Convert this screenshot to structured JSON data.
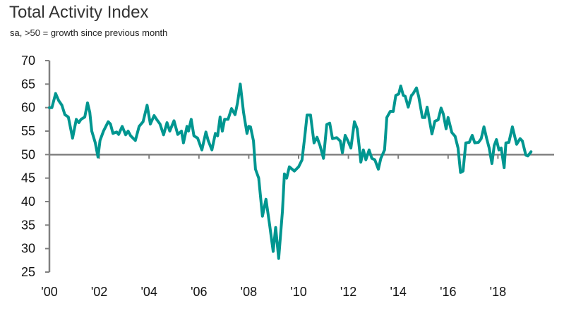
{
  "chart_data": {
    "type": "line",
    "title": "Total Activity Index",
    "subtitle": "sa, >50 = growth since previous month",
    "xlabel": "",
    "ylabel": "",
    "ylim": [
      25,
      70
    ],
    "xlim": [
      2000,
      2019.5
    ],
    "yticks": [
      25,
      30,
      35,
      40,
      45,
      50,
      55,
      60,
      65,
      70
    ],
    "xticks": [
      {
        "year": 2000,
        "label": "'00"
      },
      {
        "year": 2002,
        "label": "'02"
      },
      {
        "year": 2004,
        "label": "'04"
      },
      {
        "year": 2006,
        "label": "'06"
      },
      {
        "year": 2008,
        "label": "'08"
      },
      {
        "year": 2010,
        "label": "'10"
      },
      {
        "year": 2012,
        "label": "'12"
      },
      {
        "year": 2014,
        "label": "'14"
      },
      {
        "year": 2016,
        "label": "'16"
      },
      {
        "year": 2018,
        "label": "'18"
      }
    ],
    "reference_line": 50,
    "grid": false,
    "series": [
      {
        "name": "Total Activity Index",
        "color": "#009690",
        "x": [
          2000.0,
          2000.1,
          2000.25,
          2000.37,
          2000.5,
          2000.62,
          2000.76,
          2000.93,
          2001.08,
          2001.18,
          2001.27,
          2001.42,
          2001.53,
          2001.62,
          2001.7,
          2001.84,
          2001.95,
          2002.03,
          2002.17,
          2002.36,
          2002.45,
          2002.55,
          2002.7,
          2002.78,
          2002.92,
          2003.06,
          2003.16,
          2003.26,
          2003.45,
          2003.6,
          2003.76,
          2003.92,
          2004.05,
          2004.2,
          2004.3,
          2004.44,
          2004.58,
          2004.72,
          2004.83,
          2005.0,
          2005.15,
          2005.3,
          2005.38,
          2005.52,
          2005.58,
          2005.69,
          2005.8,
          2005.95,
          2006.12,
          2006.28,
          2006.37,
          2006.52,
          2006.66,
          2006.75,
          2006.85,
          2006.94,
          2007.03,
          2007.17,
          2007.31,
          2007.45,
          2007.55,
          2007.66,
          2007.79,
          2007.93,
          2008.0,
          2008.07,
          2008.19,
          2008.27,
          2008.4,
          2008.55,
          2008.69,
          2008.84,
          2008.98,
          2009.08,
          2009.2,
          2009.35,
          2009.43,
          2009.52,
          2009.63,
          2009.83,
          2010.0,
          2010.14,
          2010.25,
          2010.34,
          2010.48,
          2010.62,
          2010.74,
          2010.86,
          2011.0,
          2011.13,
          2011.25,
          2011.36,
          2011.53,
          2011.67,
          2011.76,
          2011.87,
          2011.98,
          2012.1,
          2012.24,
          2012.35,
          2012.44,
          2012.5,
          2012.6,
          2012.7,
          2012.83,
          2012.94,
          2013.06,
          2013.2,
          2013.3,
          2013.45,
          2013.54,
          2013.68,
          2013.8,
          2013.9,
          2014.02,
          2014.1,
          2014.2,
          2014.28,
          2014.4,
          2014.53,
          2014.59,
          2014.73,
          2014.82,
          2014.97,
          2015.07,
          2015.16,
          2015.35,
          2015.47,
          2015.6,
          2015.72,
          2015.81,
          2015.92,
          2016.0,
          2016.15,
          2016.28,
          2016.4,
          2016.5,
          2016.6,
          2016.71,
          2016.85,
          2016.97,
          2017.07,
          2017.22,
          2017.33,
          2017.44,
          2017.55,
          2017.65,
          2017.76,
          2017.85,
          2017.94,
          2018.04,
          2018.13,
          2018.25,
          2018.32,
          2018.44,
          2018.58,
          2018.75,
          2018.89,
          2018.98,
          2019.12,
          2019.2,
          2019.33
        ],
        "values": [
          60,
          60,
          63,
          61.5,
          60.5,
          58.5,
          58,
          53.5,
          57.5,
          56.8,
          57.5,
          58,
          61,
          59,
          55,
          52.5,
          49.5,
          53,
          55,
          57,
          56.5,
          54.5,
          54.8,
          54.3,
          56,
          54.2,
          55,
          54,
          53,
          56,
          57,
          60.5,
          56.5,
          58.3,
          57.5,
          56.5,
          54.2,
          56.8,
          55,
          57.2,
          54.3,
          55,
          52.5,
          56,
          55,
          57.5,
          54,
          53.5,
          51,
          54.8,
          53,
          51,
          54.5,
          54,
          58,
          55,
          57.5,
          57.5,
          59.8,
          58.5,
          61,
          65,
          59,
          54.5,
          56,
          55.9,
          52.9,
          46.9,
          45,
          36.9,
          40.5,
          34.9,
          29.4,
          34.5,
          27.9,
          37.9,
          45.9,
          45,
          47.4,
          46.5,
          47.4,
          48.9,
          53.9,
          58.4,
          58.4,
          52.5,
          53.7,
          51.9,
          49.2,
          56.4,
          56.7,
          53.4,
          53.6,
          52.9,
          50.4,
          54.1,
          52.9,
          51.4,
          57,
          55.5,
          51.4,
          48.4,
          51,
          48.9,
          51,
          49.2,
          48.9,
          46.9,
          49.2,
          51,
          57.9,
          59.2,
          59.2,
          62.6,
          62.9,
          64.6,
          62.6,
          62.4,
          60.1,
          62.6,
          62.9,
          64.2,
          62.4,
          57.9,
          57.9,
          60.1,
          54.4,
          57.1,
          57.4,
          59.9,
          58.6,
          55.5,
          57.9,
          54.7,
          53.9,
          51.4,
          46.2,
          46.5,
          52.5,
          52.6,
          54.1,
          52.5,
          52.6,
          53.4,
          55.9,
          53.4,
          51.4,
          48.1,
          51.9,
          53.2,
          51,
          51.4,
          47.2,
          52.5,
          52.6,
          55.9,
          52.2,
          53.4,
          52.9,
          49.9,
          49.7,
          50.6
        ]
      }
    ],
    "colors": {
      "axis": "#808080",
      "text": "#111111"
    }
  }
}
